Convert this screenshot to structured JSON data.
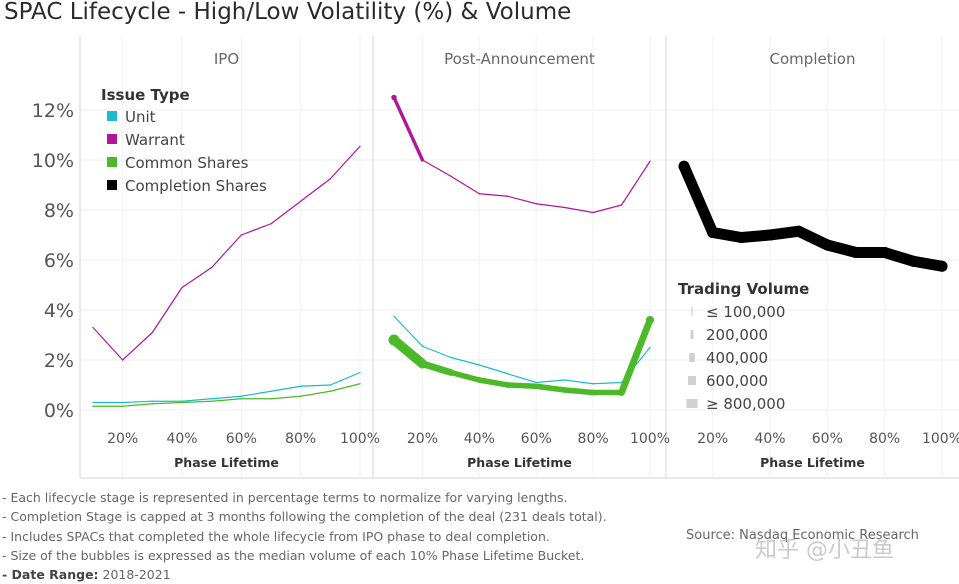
{
  "title": "SPAC Lifecycle - High/Low Volatility (%) & Volume",
  "chart_data": {
    "type": "line",
    "panels": [
      "IPO",
      "Post-Announcement",
      "Completion"
    ],
    "xlabel": "Phase Lifetime",
    "x": [
      10,
      20,
      30,
      40,
      50,
      60,
      70,
      80,
      90,
      100
    ],
    "x_tick_labels": [
      "20%",
      "40%",
      "60%",
      "80%",
      "100%"
    ],
    "y_tick_labels": [
      "0%",
      "2%",
      "4%",
      "6%",
      "8%",
      "10%",
      "12%"
    ],
    "ylim": [
      0,
      13
    ],
    "series": [
      {
        "name": "Unit",
        "color": "#1cbccc",
        "panel": "IPO",
        "values": [
          0.3,
          0.3,
          0.35,
          0.35,
          0.45,
          0.55,
          0.75,
          0.95,
          1.0,
          1.5
        ],
        "volume": [
          100000,
          100000,
          100000,
          100000,
          100000,
          100000,
          100000,
          100000,
          100000,
          100000
        ]
      },
      {
        "name": "Warrant",
        "color": "#b0169a",
        "panel": "IPO",
        "values": [
          3.3,
          2.0,
          3.1,
          4.9,
          5.7,
          7.0,
          7.45,
          8.35,
          9.25,
          10.55
        ],
        "volume": [
          100000,
          100000,
          100000,
          100000,
          100000,
          100000,
          100000,
          100000,
          100000,
          100000
        ]
      },
      {
        "name": "Common Shares",
        "color": "#4cb928",
        "panel": "IPO",
        "values": [
          0.15,
          0.15,
          0.25,
          0.3,
          0.35,
          0.45,
          0.45,
          0.55,
          0.75,
          1.05
        ],
        "volume": [
          100000,
          100000,
          100000,
          100000,
          100000,
          100000,
          100000,
          100000,
          100000,
          100000
        ]
      },
      {
        "name": "Unit",
        "color": "#1cbccc",
        "panel": "Post-Announcement",
        "values": [
          3.75,
          2.55,
          2.1,
          1.8,
          1.45,
          1.1,
          1.2,
          1.05,
          1.1,
          2.5
        ],
        "volume": [
          100000,
          100000,
          100000,
          100000,
          100000,
          100000,
          100000,
          100000,
          100000,
          100000
        ]
      },
      {
        "name": "Warrant",
        "color": "#b0169a",
        "panel": "Post-Announcement",
        "values": [
          12.5,
          10.0,
          9.35,
          8.65,
          8.55,
          8.25,
          8.1,
          7.9,
          8.2,
          9.95
        ],
        "volume": [
          400000,
          100000,
          100000,
          100000,
          100000,
          100000,
          100000,
          100000,
          100000,
          100000
        ]
      },
      {
        "name": "Common Shares",
        "color": "#4cb928",
        "panel": "Post-Announcement",
        "values": [
          2.8,
          1.85,
          1.5,
          1.2,
          1.0,
          0.95,
          0.8,
          0.7,
          0.7,
          3.6
        ],
        "volume": [
          800000,
          600000,
          400000,
          400000,
          400000,
          400000,
          400000,
          400000,
          400000,
          600000
        ]
      },
      {
        "name": "Completion Shares",
        "color": "#000000",
        "panel": "Completion",
        "values": [
          9.75,
          7.1,
          6.9,
          7.0,
          7.15,
          6.6,
          6.3,
          6.3,
          5.95,
          5.75
        ],
        "volume": [
          800000,
          800000,
          800000,
          800000,
          800000,
          800000,
          800000,
          800000,
          800000,
          800000
        ]
      }
    ],
    "legend_color": {
      "title": "Issue Type",
      "items": [
        {
          "label": "Unit",
          "color": "#1cbccc"
        },
        {
          "label": "Warrant",
          "color": "#b0169a"
        },
        {
          "label": "Common Shares",
          "color": "#4cb928"
        },
        {
          "label": "Completion Shares",
          "color": "#000000"
        }
      ]
    },
    "legend_size": {
      "title": "Trading Volume",
      "items": [
        {
          "label": "≤ 100,000",
          "value": 100000
        },
        {
          "label": "200,000",
          "value": 200000
        },
        {
          "label": "400,000",
          "value": 400000
        },
        {
          "label": "600,000",
          "value": 600000
        },
        {
          "label": "≥ 800,000",
          "value": 800000
        }
      ]
    }
  },
  "notes": [
    "- Each lifecycle stage is represented in percentage terms to normalize for varying lengths.",
    "- Completion Stage is capped at 3 months following the completion of the deal (231 deals total).",
    "- Includes SPACs that completed the whole lifecycle from IPO phase to deal completion.",
    "- Size of the bubbles is expressed as the median volume of each 10% Phase Lifetime Bucket."
  ],
  "date_range_label": "- Date Range:",
  "date_range_value": "2018-2021",
  "source": "Source: Nasdaq Economic Research",
  "watermark": "知乎 @小丑鱼"
}
